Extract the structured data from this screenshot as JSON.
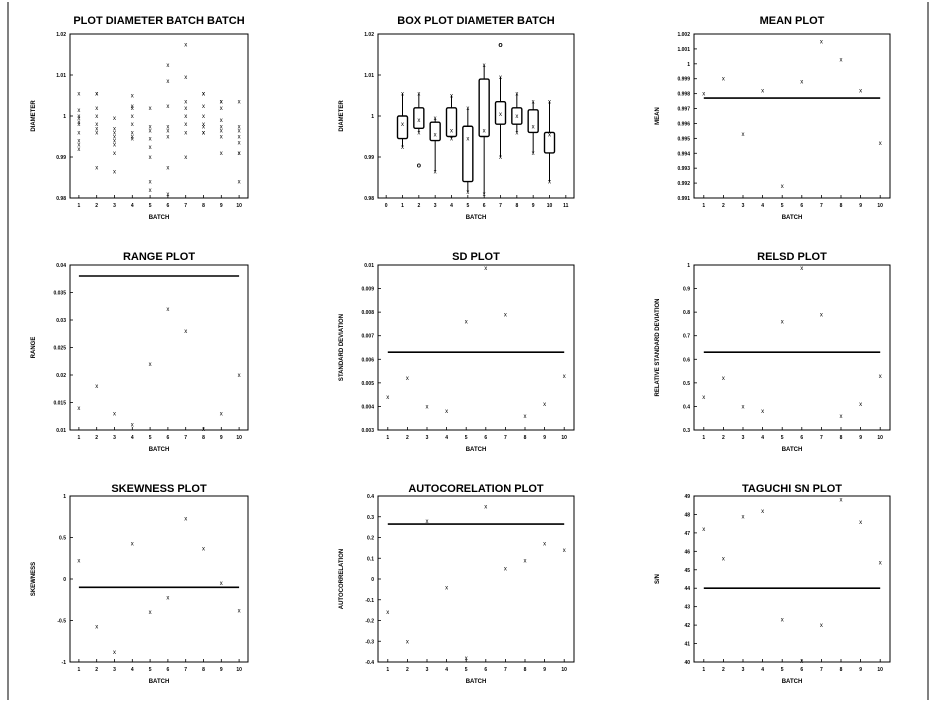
{
  "chart_data": [
    {
      "id": "plot-diameter",
      "type": "scatter",
      "title": "PLOT DIAMETER BATCH BATCH",
      "xlabel": "BATCH",
      "ylabel": "DIAMETER",
      "xlim": [
        0.5,
        10.5
      ],
      "ylim": [
        0.98,
        1.02
      ],
      "x_ticks": [
        "1",
        "2",
        "3",
        "4",
        "5",
        "6",
        "7",
        "8",
        "9",
        "10"
      ],
      "x_tick_values": [
        1,
        2,
        3,
        4,
        5,
        6,
        7,
        8,
        9,
        10
      ],
      "y_ticks": [
        "0.98",
        "0.99",
        "1",
        "1.01",
        "1.02"
      ],
      "y_tick_values": [
        0.98,
        0.99,
        1,
        1.01,
        1.02
      ],
      "marker": "x",
      "points": [
        {
          "x": 1,
          "y": 1.0055
        },
        {
          "x": 1,
          "y": 1.0015
        },
        {
          "x": 1,
          "y": 1.0
        },
        {
          "x": 1,
          "y": 0.9995
        },
        {
          "x": 1,
          "y": 0.998
        },
        {
          "x": 1,
          "y": 0.996
        },
        {
          "x": 1,
          "y": 0.994
        },
        {
          "x": 1,
          "y": 0.993
        },
        {
          "x": 1,
          "y": 0.992
        },
        {
          "x": 1,
          "y": 0.9985
        },
        {
          "x": 2,
          "y": 1.0055
        },
        {
          "x": 2,
          "y": 1.0055
        },
        {
          "x": 2,
          "y": 1.002
        },
        {
          "x": 2,
          "y": 1.0
        },
        {
          "x": 2,
          "y": 0.998
        },
        {
          "x": 2,
          "y": 0.997
        },
        {
          "x": 2,
          "y": 0.996
        },
        {
          "x": 2,
          "y": 0.9875
        },
        {
          "x": 3,
          "y": 0.9995
        },
        {
          "x": 3,
          "y": 0.997
        },
        {
          "x": 3,
          "y": 0.996
        },
        {
          "x": 3,
          "y": 0.995
        },
        {
          "x": 3,
          "y": 0.994
        },
        {
          "x": 3,
          "y": 0.993
        },
        {
          "x": 3,
          "y": 0.991
        },
        {
          "x": 3,
          "y": 0.9865
        },
        {
          "x": 4,
          "y": 1.005
        },
        {
          "x": 4,
          "y": 1.0025
        },
        {
          "x": 4,
          "y": 1.002
        },
        {
          "x": 4,
          "y": 1.0
        },
        {
          "x": 4,
          "y": 0.998
        },
        {
          "x": 4,
          "y": 0.996
        },
        {
          "x": 4,
          "y": 0.995
        },
        {
          "x": 4,
          "y": 0.9945
        },
        {
          "x": 5,
          "y": 1.002
        },
        {
          "x": 5,
          "y": 0.9975
        },
        {
          "x": 5,
          "y": 0.9965
        },
        {
          "x": 5,
          "y": 0.9945
        },
        {
          "x": 5,
          "y": 0.9925
        },
        {
          "x": 5,
          "y": 0.99
        },
        {
          "x": 5,
          "y": 0.984
        },
        {
          "x": 5,
          "y": 0.982
        },
        {
          "x": 6,
          "y": 1.0125
        },
        {
          "x": 6,
          "y": 1.0085
        },
        {
          "x": 6,
          "y": 1.0025
        },
        {
          "x": 6,
          "y": 0.9975
        },
        {
          "x": 6,
          "y": 0.9965
        },
        {
          "x": 6,
          "y": 0.995
        },
        {
          "x": 6,
          "y": 0.9875
        },
        {
          "x": 6,
          "y": 0.981
        },
        {
          "x": 7,
          "y": 1.0175
        },
        {
          "x": 7,
          "y": 1.0095
        },
        {
          "x": 7,
          "y": 1.0035
        },
        {
          "x": 7,
          "y": 1.002
        },
        {
          "x": 7,
          "y": 1.0
        },
        {
          "x": 7,
          "y": 0.998
        },
        {
          "x": 7,
          "y": 0.996
        },
        {
          "x": 7,
          "y": 0.99
        },
        {
          "x": 8,
          "y": 1.0055
        },
        {
          "x": 8,
          "y": 1.0055
        },
        {
          "x": 8,
          "y": 1.0025
        },
        {
          "x": 8,
          "y": 1.0
        },
        {
          "x": 8,
          "y": 0.998
        },
        {
          "x": 8,
          "y": 0.996
        },
        {
          "x": 8,
          "y": 0.996
        },
        {
          "x": 8,
          "y": 0.9975
        },
        {
          "x": 9,
          "y": 1.0035
        },
        {
          "x": 9,
          "y": 1.0035
        },
        {
          "x": 9,
          "y": 1.002
        },
        {
          "x": 9,
          "y": 0.999
        },
        {
          "x": 9,
          "y": 0.9975
        },
        {
          "x": 9,
          "y": 0.9965
        },
        {
          "x": 9,
          "y": 0.995
        },
        {
          "x": 9,
          "y": 0.991
        },
        {
          "x": 10,
          "y": 1.0035
        },
        {
          "x": 10,
          "y": 0.9975
        },
        {
          "x": 10,
          "y": 0.9965
        },
        {
          "x": 10,
          "y": 0.995
        },
        {
          "x": 10,
          "y": 0.9935
        },
        {
          "x": 10,
          "y": 0.991
        },
        {
          "x": 10,
          "y": 0.991
        },
        {
          "x": 10,
          "y": 0.984
        }
      ]
    },
    {
      "id": "box-plot",
      "type": "box",
      "title": "BOX PLOT DIAMETER BATCH",
      "xlabel": "BATCH",
      "ylabel": "DIAMETER",
      "xlim": [
        -0.5,
        11.5
      ],
      "ylim": [
        0.98,
        1.02
      ],
      "x_ticks": [
        "0",
        "1",
        "2",
        "3",
        "4",
        "5",
        "6",
        "7",
        "8",
        "9",
        "10",
        "11"
      ],
      "x_tick_values": [
        0,
        1,
        2,
        3,
        4,
        5,
        6,
        7,
        8,
        9,
        10,
        11
      ],
      "y_ticks": [
        "0.98",
        "0.99",
        "1",
        "1.01",
        "1.02"
      ],
      "y_tick_values": [
        0.98,
        0.99,
        1,
        1.01,
        1.02
      ],
      "boxes": [
        {
          "x": 1,
          "min": 0.9925,
          "q1": 0.9945,
          "median": 0.998,
          "q3": 1.0,
          "max": 1.0055,
          "mean": 0.998
        },
        {
          "x": 2,
          "min": 0.996,
          "q1": 0.997,
          "median": 0.9985,
          "q3": 1.002,
          "max": 1.0055,
          "mean": 0.999
        },
        {
          "x": 3,
          "min": 0.9865,
          "q1": 0.994,
          "median": 0.9955,
          "q3": 0.9985,
          "max": 0.9995,
          "mean": 0.9955
        },
        {
          "x": 4,
          "min": 0.9945,
          "q1": 0.995,
          "median": 0.9985,
          "q3": 1.002,
          "max": 1.005,
          "mean": 0.9965
        },
        {
          "x": 5,
          "min": 0.9815,
          "q1": 0.984,
          "median": 0.995,
          "q3": 0.9975,
          "max": 1.002,
          "mean": 0.9945
        },
        {
          "x": 6,
          "min": 0.981,
          "q1": 0.995,
          "median": 0.9965,
          "q3": 1.009,
          "max": 1.0125,
          "mean": 0.9965
        },
        {
          "x": 7,
          "min": 0.99,
          "q1": 0.998,
          "median": 1.0,
          "q3": 1.0035,
          "max": 1.0095,
          "mean": 1.0005
        },
        {
          "x": 8,
          "min": 0.996,
          "q1": 0.998,
          "median": 1.0,
          "q3": 1.002,
          "max": 1.0055,
          "mean": 1.0
        },
        {
          "x": 9,
          "min": 0.991,
          "q1": 0.996,
          "median": 0.9975,
          "q3": 1.0015,
          "max": 1.0035,
          "mean": 0.9975
        },
        {
          "x": 10,
          "min": 0.984,
          "q1": 0.991,
          "median": 0.994,
          "q3": 0.996,
          "max": 1.0035,
          "mean": 0.9955
        }
      ],
      "outliers": [
        {
          "x": 2,
          "y": 0.988
        },
        {
          "x": 7,
          "y": 1.0175
        }
      ]
    },
    {
      "id": "mean-plot",
      "type": "scatter",
      "title": "MEAN PLOT",
      "xlabel": "BATCH",
      "ylabel": "MEAN",
      "xlim": [
        0.5,
        10.5
      ],
      "ylim": [
        0.991,
        1.002
      ],
      "x_ticks": [
        "1",
        "2",
        "3",
        "4",
        "5",
        "6",
        "7",
        "8",
        "9",
        "10"
      ],
      "x_tick_values": [
        1,
        2,
        3,
        4,
        5,
        6,
        7,
        8,
        9,
        10
      ],
      "y_ticks": [
        "0.991",
        "0.992",
        "0.993",
        "0.994",
        "0.995",
        "0.996",
        "0.997",
        "0.998",
        "0.999",
        "1",
        "1.001",
        "1.002"
      ],
      "y_tick_values": [
        0.991,
        0.992,
        0.993,
        0.994,
        0.995,
        0.996,
        0.997,
        0.998,
        0.999,
        1,
        1.001,
        1.002
      ],
      "marker": "x",
      "points": [
        {
          "x": 1,
          "y": 0.998
        },
        {
          "x": 2,
          "y": 0.999
        },
        {
          "x": 3,
          "y": 0.9953
        },
        {
          "x": 4,
          "y": 0.9982
        },
        {
          "x": 5,
          "y": 0.9918
        },
        {
          "x": 6,
          "y": 0.9988
        },
        {
          "x": 7,
          "y": 1.0015
        },
        {
          "x": 8,
          "y": 1.0003
        },
        {
          "x": 9,
          "y": 0.9982
        },
        {
          "x": 10,
          "y": 0.9947
        }
      ],
      "reference_line": 0.9977
    },
    {
      "id": "range-plot",
      "type": "scatter",
      "title": "RANGE PLOT",
      "xlabel": "BATCH",
      "ylabel": "RANGE",
      "xlim": [
        0.5,
        10.5
      ],
      "ylim": [
        0.01,
        0.04
      ],
      "x_ticks": [
        "1",
        "2",
        "3",
        "4",
        "5",
        "6",
        "7",
        "8",
        "9",
        "10"
      ],
      "x_tick_values": [
        1,
        2,
        3,
        4,
        5,
        6,
        7,
        8,
        9,
        10
      ],
      "y_ticks": [
        "0.01",
        "0.015",
        "0.02",
        "0.025",
        "0.03",
        "0.035",
        "0.04"
      ],
      "y_tick_values": [
        0.01,
        0.015,
        0.02,
        0.025,
        0.03,
        0.035,
        0.04
      ],
      "marker": "x",
      "points": [
        {
          "x": 1,
          "y": 0.014
        },
        {
          "x": 2,
          "y": 0.018
        },
        {
          "x": 3,
          "y": 0.013
        },
        {
          "x": 4,
          "y": 0.011
        },
        {
          "x": 5,
          "y": 0.022
        },
        {
          "x": 6,
          "y": 0.032
        },
        {
          "x": 7,
          "y": 0.028
        },
        {
          "x": 8,
          "y": 0.009
        },
        {
          "x": 9,
          "y": 0.013
        },
        {
          "x": 10,
          "y": 0.02
        }
      ],
      "reference_line": 0.038
    },
    {
      "id": "sd-plot",
      "type": "scatter",
      "title": "SD PLOT",
      "xlabel": "BATCH",
      "ylabel": "STANDARD DEVIATION",
      "xlim": [
        0.5,
        10.5
      ],
      "ylim": [
        0.003,
        0.01
      ],
      "x_ticks": [
        "1",
        "2",
        "3",
        "4",
        "5",
        "6",
        "7",
        "8",
        "9",
        "10"
      ],
      "x_tick_values": [
        1,
        2,
        3,
        4,
        5,
        6,
        7,
        8,
        9,
        10
      ],
      "y_ticks": [
        "0.003",
        "0.004",
        "0.005",
        "0.006",
        "0.007",
        "0.008",
        "0.009",
        "0.01"
      ],
      "y_tick_values": [
        0.003,
        0.004,
        0.005,
        0.006,
        0.007,
        0.008,
        0.009,
        0.01
      ],
      "marker": "x",
      "points": [
        {
          "x": 1,
          "y": 0.0044
        },
        {
          "x": 2,
          "y": 0.0052
        },
        {
          "x": 3,
          "y": 0.004
        },
        {
          "x": 4,
          "y": 0.0038
        },
        {
          "x": 5,
          "y": 0.0076
        },
        {
          "x": 6,
          "y": 0.0099
        },
        {
          "x": 7,
          "y": 0.0079
        },
        {
          "x": 8,
          "y": 0.0036
        },
        {
          "x": 9,
          "y": 0.0041
        },
        {
          "x": 10,
          "y": 0.0053
        }
      ],
      "reference_line": 0.0063
    },
    {
      "id": "relsd-plot",
      "type": "scatter",
      "title": "RELSD PLOT",
      "xlabel": "BATCH",
      "ylabel": "RELATIVE STANDARD DEVIATION",
      "xlim": [
        0.5,
        10.5
      ],
      "ylim": [
        0.3,
        1.0
      ],
      "x_ticks": [
        "1",
        "2",
        "3",
        "4",
        "5",
        "6",
        "7",
        "8",
        "9",
        "10"
      ],
      "x_tick_values": [
        1,
        2,
        3,
        4,
        5,
        6,
        7,
        8,
        9,
        10
      ],
      "y_ticks": [
        "0.3",
        "0.4",
        "0.5",
        "0.6",
        "0.7",
        "0.8",
        "0.9",
        "1"
      ],
      "y_tick_values": [
        0.3,
        0.4,
        0.5,
        0.6,
        0.7,
        0.8,
        0.9,
        1.0
      ],
      "marker": "x",
      "points": [
        {
          "x": 1,
          "y": 0.44
        },
        {
          "x": 2,
          "y": 0.52
        },
        {
          "x": 3,
          "y": 0.4
        },
        {
          "x": 4,
          "y": 0.38
        },
        {
          "x": 5,
          "y": 0.76
        },
        {
          "x": 6,
          "y": 0.99
        },
        {
          "x": 7,
          "y": 0.79
        },
        {
          "x": 8,
          "y": 0.36
        },
        {
          "x": 9,
          "y": 0.41
        },
        {
          "x": 10,
          "y": 0.53
        }
      ],
      "reference_line": 0.63
    },
    {
      "id": "skewness-plot",
      "type": "scatter",
      "title": "SKEWNESS PLOT",
      "xlabel": "BATCH",
      "ylabel": "SKEWNESS",
      "xlim": [
        0.5,
        10.5
      ],
      "ylim": [
        -1,
        1
      ],
      "x_ticks": [
        "1",
        "2",
        "3",
        "4",
        "5",
        "6",
        "7",
        "8",
        "9",
        "10"
      ],
      "x_tick_values": [
        1,
        2,
        3,
        4,
        5,
        6,
        7,
        8,
        9,
        10
      ],
      "y_ticks": [
        "-1",
        "-0.5",
        "0",
        "0.5",
        "1"
      ],
      "y_tick_values": [
        -1,
        -0.5,
        0,
        0.5,
        1
      ],
      "marker": "x",
      "points": [
        {
          "x": 1,
          "y": 0.22
        },
        {
          "x": 2,
          "y": -0.57
        },
        {
          "x": 3,
          "y": -0.88
        },
        {
          "x": 4,
          "y": 0.43
        },
        {
          "x": 5,
          "y": -0.4
        },
        {
          "x": 6,
          "y": -0.22
        },
        {
          "x": 7,
          "y": 0.73
        },
        {
          "x": 8,
          "y": 0.37
        },
        {
          "x": 9,
          "y": -0.05
        },
        {
          "x": 10,
          "y": -0.38
        }
      ],
      "reference_line": -0.1
    },
    {
      "id": "autocorrelation-plot",
      "type": "scatter",
      "title": "AUTOCORELATION PLOT",
      "xlabel": "BATCH",
      "ylabel": "AUTOCORRELATION",
      "xlim": [
        0.5,
        10.5
      ],
      "ylim": [
        -0.4,
        0.4
      ],
      "x_ticks": [
        "1",
        "2",
        "3",
        "4",
        "5",
        "6",
        "7",
        "8",
        "9",
        "10"
      ],
      "x_tick_values": [
        1,
        2,
        3,
        4,
        5,
        6,
        7,
        8,
        9,
        10
      ],
      "y_ticks": [
        "-0.4",
        "-0.3",
        "-0.2",
        "-0.1",
        "0",
        "0.1",
        "0.2",
        "0.3",
        "0.4"
      ],
      "y_tick_values": [
        -0.4,
        -0.3,
        -0.2,
        -0.1,
        0,
        0.1,
        0.2,
        0.3,
        0.4
      ],
      "marker": "x",
      "points": [
        {
          "x": 1,
          "y": -0.16
        },
        {
          "x": 2,
          "y": -0.3
        },
        {
          "x": 3,
          "y": 0.28
        },
        {
          "x": 4,
          "y": -0.04
        },
        {
          "x": 5,
          "y": -0.38
        },
        {
          "x": 6,
          "y": 0.35
        },
        {
          "x": 7,
          "y": 0.05
        },
        {
          "x": 8,
          "y": 0.09
        },
        {
          "x": 9,
          "y": 0.17
        },
        {
          "x": 10,
          "y": 0.14
        }
      ],
      "reference_line": 0.265
    },
    {
      "id": "taguchi-plot",
      "type": "scatter",
      "title": "TAGUCHI SN PLOT",
      "xlabel": "BATCH",
      "ylabel": "S/N",
      "xlim": [
        0.5,
        10.5
      ],
      "ylim": [
        40,
        49
      ],
      "x_ticks": [
        "1",
        "2",
        "3",
        "4",
        "5",
        "6",
        "7",
        "8",
        "9",
        "10"
      ],
      "x_tick_values": [
        1,
        2,
        3,
        4,
        5,
        6,
        7,
        8,
        9,
        10
      ],
      "y_ticks": [
        "40",
        "41",
        "42",
        "43",
        "44",
        "45",
        "46",
        "47",
        "48",
        "49"
      ],
      "y_tick_values": [
        40,
        41,
        42,
        43,
        44,
        45,
        46,
        47,
        48,
        49
      ],
      "marker": "x",
      "points": [
        {
          "x": 1,
          "y": 47.2
        },
        {
          "x": 2,
          "y": 45.6
        },
        {
          "x": 3,
          "y": 47.9
        },
        {
          "x": 4,
          "y": 48.2
        },
        {
          "x": 5,
          "y": 42.3
        },
        {
          "x": 6,
          "y": 40.0
        },
        {
          "x": 7,
          "y": 42.0
        },
        {
          "x": 8,
          "y": 48.8
        },
        {
          "x": 9,
          "y": 47.6
        },
        {
          "x": 10,
          "y": 45.4
        }
      ],
      "reference_line": 44.0
    }
  ]
}
